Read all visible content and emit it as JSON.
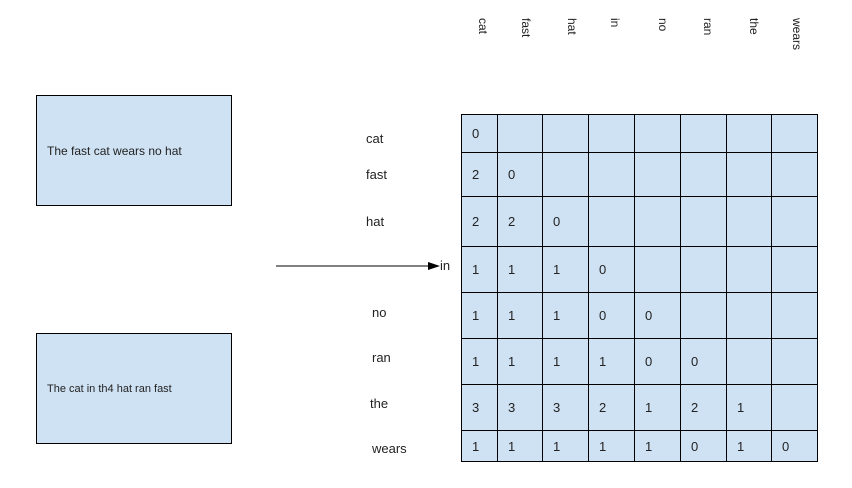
{
  "sentences": {
    "first": "The fast cat wears no hat",
    "second": "The cat in th4 hat ran fast"
  },
  "columns": [
    "cat",
    "fast",
    "hat",
    "in",
    "no",
    "ran",
    "the",
    "wears"
  ],
  "rows": [
    "cat",
    "fast",
    "hat",
    "in",
    "no",
    "ran",
    "the",
    "wears"
  ],
  "matrix": [
    [
      "0",
      "",
      "",
      "",
      "",
      "",
      "",
      ""
    ],
    [
      "2",
      "0",
      "",
      "",
      "",
      "",
      "",
      ""
    ],
    [
      "2",
      "2",
      "0",
      "",
      "",
      "",
      "",
      ""
    ],
    [
      "1",
      "1",
      "1",
      "0",
      "",
      "",
      "",
      ""
    ],
    [
      "1",
      "1",
      "1",
      "0",
      "0",
      "",
      "",
      ""
    ],
    [
      "1",
      "1",
      "1",
      "1",
      "0",
      "0",
      "",
      ""
    ],
    [
      "3",
      "3",
      "3",
      "2",
      "1",
      "2",
      "1",
      ""
    ],
    [
      "1",
      "1",
      "1",
      "1",
      "1",
      "0",
      "1",
      "0"
    ]
  ],
  "colors": {
    "box_fill": "#cfe2f3",
    "border": "#000000"
  }
}
